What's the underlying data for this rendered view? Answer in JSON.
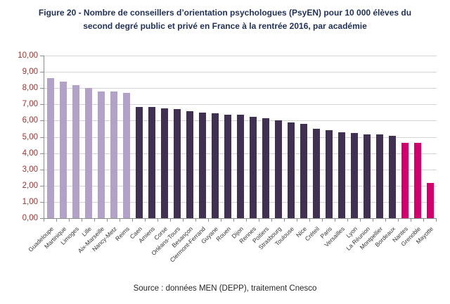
{
  "figure": {
    "title_line1": "Figure 20 - Nombre de conseillers d’orientation psychologues (PsyEN) pour 10 000 élèves du",
    "title_line2": "second degré public et privé en France à la rentrée 2016, par académie",
    "source": "Source : données MEN (DEPP), traitement Cnesco",
    "title_color": "#1f2f55"
  },
  "chart_data": {
    "type": "bar",
    "title": "Nombre de conseillers d’orientation psychologues (PsyEN) pour 10 000 élèves du second degré public et privé en France à la rentrée 2016, par académie",
    "xlabel": "",
    "ylabel": "",
    "ylim": [
      0,
      10
    ],
    "grid": true,
    "legend": "none",
    "categories": [
      "Guadeloupe",
      "Martinique",
      "Limoges",
      "Lille",
      "Aix-Marseille",
      "Nancy-Metz",
      "Reims",
      "Caen",
      "Amiens",
      "Corse",
      "Orléans-Tours",
      "Besançon",
      "Clermont-Ferrand",
      "Guyane",
      "Rouen",
      "Dijon",
      "Rennes",
      "Poitiers",
      "Strasbourg",
      "Toulouse",
      "Nice",
      "Créteil",
      "Paris",
      "Versailles",
      "Lyon",
      "La Réunion",
      "Montpellier",
      "Bordeaux",
      "Nantes",
      "Grenoble",
      "Mayotte"
    ],
    "values": [
      8.6,
      8.4,
      8.2,
      8.0,
      7.8,
      7.8,
      7.7,
      6.85,
      6.85,
      6.75,
      6.7,
      6.6,
      6.5,
      6.45,
      6.35,
      6.35,
      6.25,
      6.15,
      6.0,
      5.9,
      5.8,
      5.5,
      5.4,
      5.3,
      5.25,
      5.15,
      5.15,
      5.05,
      4.65,
      4.65,
      2.15
    ],
    "bar_colors": [
      "#b2a2c7",
      "#b2a2c7",
      "#b2a2c7",
      "#b2a2c7",
      "#b2a2c7",
      "#b2a2c7",
      "#b2a2c7",
      "#403152",
      "#403152",
      "#403152",
      "#403152",
      "#403152",
      "#403152",
      "#403152",
      "#403152",
      "#403152",
      "#403152",
      "#403152",
      "#403152",
      "#403152",
      "#403152",
      "#403152",
      "#403152",
      "#403152",
      "#403152",
      "#403152",
      "#403152",
      "#403152",
      "#d0006c",
      "#d0006c",
      "#d0006c"
    ],
    "palette": {
      "light_purple": "#b2a2c7",
      "dark_purple": "#403152",
      "magenta": "#d0006c"
    },
    "y_ticks": [
      "0,00",
      "1,00",
      "2,00",
      "3,00",
      "4,00",
      "5,00",
      "6,00",
      "7,00",
      "8,00",
      "9,00",
      "10,00"
    ],
    "y_tick_color": "#943634",
    "gridline_color": "#d4d4d4",
    "axis_color": "#8c8c8c"
  }
}
